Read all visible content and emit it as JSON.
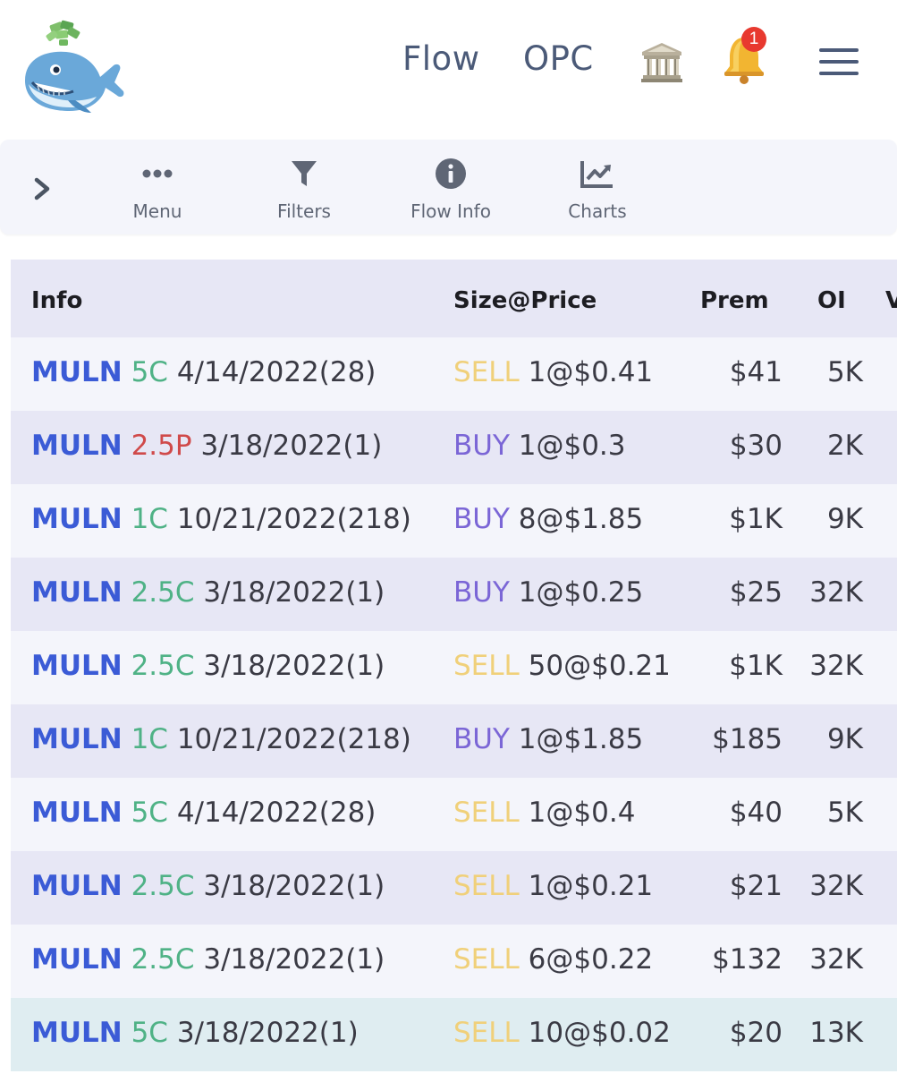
{
  "nav": {
    "flow": "Flow",
    "opc": "OPC",
    "notification_count": "1"
  },
  "toolbar": {
    "items": [
      {
        "label": "Menu",
        "icon": "ellipsis-icon"
      },
      {
        "label": "Filters",
        "icon": "filter-icon"
      },
      {
        "label": "Flow Info",
        "icon": "info-icon"
      },
      {
        "label": "Charts",
        "icon": "chart-icon"
      }
    ]
  },
  "table": {
    "columns": {
      "info": "Info",
      "size_price": "Size@Price",
      "prem": "Prem",
      "oi": "OI"
    },
    "rows": [
      {
        "ticker": "MULN",
        "strike": "5C",
        "expiry": "4/14/2022(28)",
        "side": "SELL",
        "size_price": "1@$0.41",
        "prem": "$41",
        "oi": "5K"
      },
      {
        "ticker": "MULN",
        "strike": "2.5P",
        "expiry": "3/18/2022(1)",
        "side": "BUY",
        "size_price": "1@$0.3",
        "prem": "$30",
        "oi": "2K"
      },
      {
        "ticker": "MULN",
        "strike": "1C",
        "expiry": "10/21/2022(218)",
        "side": "BUY",
        "size_price": "8@$1.85",
        "prem": "$1K",
        "oi": "9K"
      },
      {
        "ticker": "MULN",
        "strike": "2.5C",
        "expiry": "3/18/2022(1)",
        "side": "BUY",
        "size_price": "1@$0.25",
        "prem": "$25",
        "oi": "32K"
      },
      {
        "ticker": "MULN",
        "strike": "2.5C",
        "expiry": "3/18/2022(1)",
        "side": "SELL",
        "size_price": "50@$0.21",
        "prem": "$1K",
        "oi": "32K"
      },
      {
        "ticker": "MULN",
        "strike": "1C",
        "expiry": "10/21/2022(218)",
        "side": "BUY",
        "size_price": "1@$1.85",
        "prem": "$185",
        "oi": "9K"
      },
      {
        "ticker": "MULN",
        "strike": "5C",
        "expiry": "4/14/2022(28)",
        "side": "SELL",
        "size_price": "1@$0.4",
        "prem": "$40",
        "oi": "5K"
      },
      {
        "ticker": "MULN",
        "strike": "2.5C",
        "expiry": "3/18/2022(1)",
        "side": "SELL",
        "size_price": "1@$0.21",
        "prem": "$21",
        "oi": "32K"
      },
      {
        "ticker": "MULN",
        "strike": "2.5C",
        "expiry": "3/18/2022(1)",
        "side": "SELL",
        "size_price": "6@$0.22",
        "prem": "$132",
        "oi": "32K"
      },
      {
        "ticker": "MULN",
        "strike": "5C",
        "expiry": "3/18/2022(1)",
        "side": "SELL",
        "size_price": "10@$0.02",
        "prem": "$20",
        "oi": "13K"
      }
    ]
  },
  "colors": {
    "ticker": "#3b5bd6",
    "call": "#4fb286",
    "put": "#d04a4a",
    "sell": "#f0d07a",
    "buy": "#7b66d6",
    "badge": "#e8392f"
  }
}
